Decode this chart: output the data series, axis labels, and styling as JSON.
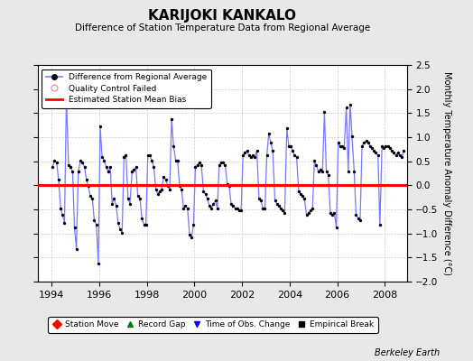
{
  "title": "KARIJOKI KANKALO",
  "subtitle": "Difference of Station Temperature Data from Regional Average",
  "ylabel": "Monthly Temperature Anomaly Difference (°C)",
  "xlabel_years": [
    1994,
    1996,
    1998,
    2000,
    2002,
    2004,
    2006,
    2008
  ],
  "xlim": [
    1993.42,
    2008.92
  ],
  "ylim": [
    -2.0,
    2.5
  ],
  "yticks": [
    -2,
    -1.5,
    -1,
    -0.5,
    0,
    0.5,
    1,
    1.5,
    2,
    2.5
  ],
  "bias_value": 0.0,
  "line_color": "#7777ff",
  "dot_color": "#000000",
  "bias_color": "#ff0000",
  "background_color": "#e8e8e8",
  "plot_bg_color": "#ffffff",
  "grid_color": "#cccccc",
  "watermark": "Berkeley Earth",
  "time_series": [
    [
      1994.04,
      0.38
    ],
    [
      1994.12,
      0.52
    ],
    [
      1994.21,
      0.48
    ],
    [
      1994.29,
      0.12
    ],
    [
      1994.38,
      -0.48
    ],
    [
      1994.46,
      -0.62
    ],
    [
      1994.54,
      -0.78
    ],
    [
      1994.62,
      1.82
    ],
    [
      1994.71,
      0.42
    ],
    [
      1994.79,
      0.38
    ],
    [
      1994.88,
      0.28
    ],
    [
      1994.96,
      -0.88
    ],
    [
      1995.04,
      -1.32
    ],
    [
      1995.12,
      0.28
    ],
    [
      1995.21,
      0.52
    ],
    [
      1995.29,
      0.48
    ],
    [
      1995.38,
      0.38
    ],
    [
      1995.46,
      0.12
    ],
    [
      1995.54,
      -0.02
    ],
    [
      1995.62,
      -0.22
    ],
    [
      1995.71,
      -0.28
    ],
    [
      1995.79,
      -0.72
    ],
    [
      1995.88,
      -0.82
    ],
    [
      1995.96,
      -1.62
    ],
    [
      1996.04,
      1.22
    ],
    [
      1996.12,
      0.58
    ],
    [
      1996.21,
      0.52
    ],
    [
      1996.29,
      0.38
    ],
    [
      1996.38,
      0.28
    ],
    [
      1996.46,
      0.38
    ],
    [
      1996.54,
      -0.38
    ],
    [
      1996.62,
      -0.28
    ],
    [
      1996.71,
      -0.42
    ],
    [
      1996.79,
      -0.78
    ],
    [
      1996.88,
      -0.92
    ],
    [
      1996.96,
      -0.98
    ],
    [
      1997.04,
      0.58
    ],
    [
      1997.12,
      0.62
    ],
    [
      1997.21,
      -0.28
    ],
    [
      1997.29,
      -0.38
    ],
    [
      1997.38,
      0.28
    ],
    [
      1997.46,
      0.32
    ],
    [
      1997.54,
      0.38
    ],
    [
      1997.62,
      -0.22
    ],
    [
      1997.71,
      -0.28
    ],
    [
      1997.79,
      -0.68
    ],
    [
      1997.88,
      -0.82
    ],
    [
      1997.96,
      -0.82
    ],
    [
      1998.04,
      0.62
    ],
    [
      1998.12,
      0.62
    ],
    [
      1998.21,
      0.52
    ],
    [
      1998.29,
      0.38
    ],
    [
      1998.38,
      -0.08
    ],
    [
      1998.46,
      -0.18
    ],
    [
      1998.54,
      -0.12
    ],
    [
      1998.62,
      -0.08
    ],
    [
      1998.71,
      0.18
    ],
    [
      1998.79,
      0.12
    ],
    [
      1998.88,
      -0.02
    ],
    [
      1998.96,
      -0.08
    ],
    [
      1999.04,
      1.38
    ],
    [
      1999.12,
      0.82
    ],
    [
      1999.21,
      0.52
    ],
    [
      1999.29,
      0.52
    ],
    [
      1999.38,
      -0.02
    ],
    [
      1999.46,
      -0.08
    ],
    [
      1999.54,
      -0.48
    ],
    [
      1999.62,
      -0.42
    ],
    [
      1999.71,
      -0.48
    ],
    [
      1999.79,
      -1.02
    ],
    [
      1999.88,
      -1.08
    ],
    [
      1999.96,
      -0.82
    ],
    [
      2000.04,
      0.38
    ],
    [
      2000.12,
      0.42
    ],
    [
      2000.21,
      0.48
    ],
    [
      2000.29,
      0.42
    ],
    [
      2000.38,
      -0.12
    ],
    [
      2000.46,
      -0.18
    ],
    [
      2000.54,
      -0.28
    ],
    [
      2000.62,
      -0.42
    ],
    [
      2000.71,
      -0.48
    ],
    [
      2000.79,
      -0.38
    ],
    [
      2000.88,
      -0.32
    ],
    [
      2000.96,
      -0.48
    ],
    [
      2001.04,
      0.42
    ],
    [
      2001.12,
      0.48
    ],
    [
      2001.21,
      0.48
    ],
    [
      2001.29,
      0.42
    ],
    [
      2001.38,
      0.02
    ],
    [
      2001.46,
      -0.02
    ],
    [
      2001.54,
      -0.38
    ],
    [
      2001.62,
      -0.42
    ],
    [
      2001.71,
      -0.48
    ],
    [
      2001.79,
      -0.48
    ],
    [
      2001.88,
      -0.52
    ],
    [
      2001.96,
      -0.52
    ],
    [
      2002.04,
      0.62
    ],
    [
      2002.12,
      0.68
    ],
    [
      2002.21,
      0.72
    ],
    [
      2002.29,
      0.62
    ],
    [
      2002.38,
      0.58
    ],
    [
      2002.46,
      0.62
    ],
    [
      2002.54,
      0.58
    ],
    [
      2002.62,
      0.72
    ],
    [
      2002.71,
      -0.28
    ],
    [
      2002.79,
      -0.32
    ],
    [
      2002.88,
      -0.48
    ],
    [
      2002.96,
      -0.48
    ],
    [
      2003.04,
      0.62
    ],
    [
      2003.12,
      1.08
    ],
    [
      2003.21,
      0.88
    ],
    [
      2003.29,
      0.72
    ],
    [
      2003.38,
      -0.32
    ],
    [
      2003.46,
      -0.38
    ],
    [
      2003.54,
      -0.42
    ],
    [
      2003.62,
      -0.48
    ],
    [
      2003.71,
      -0.52
    ],
    [
      2003.79,
      -0.58
    ],
    [
      2003.88,
      1.18
    ],
    [
      2003.96,
      0.82
    ],
    [
      2004.04,
      0.82
    ],
    [
      2004.12,
      0.72
    ],
    [
      2004.21,
      0.62
    ],
    [
      2004.29,
      0.58
    ],
    [
      2004.38,
      -0.12
    ],
    [
      2004.46,
      -0.18
    ],
    [
      2004.54,
      -0.22
    ],
    [
      2004.62,
      -0.28
    ],
    [
      2004.71,
      -0.62
    ],
    [
      2004.79,
      -0.58
    ],
    [
      2004.88,
      -0.52
    ],
    [
      2004.96,
      -0.48
    ],
    [
      2005.04,
      0.52
    ],
    [
      2005.12,
      0.42
    ],
    [
      2005.21,
      0.28
    ],
    [
      2005.29,
      0.32
    ],
    [
      2005.38,
      0.28
    ],
    [
      2005.46,
      1.52
    ],
    [
      2005.54,
      0.28
    ],
    [
      2005.62,
      0.22
    ],
    [
      2005.71,
      -0.58
    ],
    [
      2005.79,
      -0.62
    ],
    [
      2005.88,
      -0.58
    ],
    [
      2005.96,
      -0.88
    ],
    [
      2006.04,
      0.88
    ],
    [
      2006.12,
      0.82
    ],
    [
      2006.21,
      0.82
    ],
    [
      2006.29,
      0.78
    ],
    [
      2006.38,
      1.62
    ],
    [
      2006.46,
      0.28
    ],
    [
      2006.54,
      1.68
    ],
    [
      2006.62,
      1.02
    ],
    [
      2006.71,
      0.28
    ],
    [
      2006.79,
      -0.62
    ],
    [
      2006.88,
      -0.68
    ],
    [
      2006.96,
      -0.72
    ],
    [
      2007.04,
      0.82
    ],
    [
      2007.12,
      0.88
    ],
    [
      2007.21,
      0.92
    ],
    [
      2007.29,
      0.88
    ],
    [
      2007.38,
      0.82
    ],
    [
      2007.46,
      0.78
    ],
    [
      2007.54,
      0.72
    ],
    [
      2007.62,
      0.68
    ],
    [
      2007.71,
      0.62
    ],
    [
      2007.79,
      -0.82
    ],
    [
      2007.88,
      0.82
    ],
    [
      2007.96,
      0.78
    ],
    [
      2008.04,
      0.82
    ],
    [
      2008.12,
      0.82
    ],
    [
      2008.21,
      0.78
    ],
    [
      2008.29,
      0.72
    ],
    [
      2008.38,
      0.68
    ],
    [
      2008.46,
      0.62
    ],
    [
      2008.54,
      0.68
    ],
    [
      2008.62,
      0.62
    ],
    [
      2008.71,
      0.58
    ],
    [
      2008.79,
      0.72
    ]
  ]
}
